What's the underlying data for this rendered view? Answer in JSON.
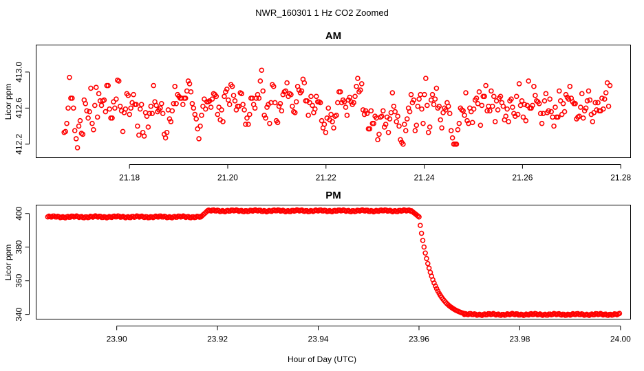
{
  "figure": {
    "suptitle": "NWR_160301  1 Hz CO2 Zoomed",
    "xlabel": "Hour of Day (UTC)"
  },
  "chart_data": [
    {
      "type": "scatter",
      "title": "AM",
      "ylabel": "Licor ppm",
      "xlim": [
        21.161,
        21.282
      ],
      "ylim": [
        412.05,
        413.3
      ],
      "xticks": [
        21.18,
        21.2,
        21.22,
        21.24,
        21.26,
        21.28
      ],
      "xtick_labels": [
        "21.18",
        "21.20",
        "21.22",
        "21.24",
        "21.26",
        "21.28"
      ],
      "yticks": [
        412.2,
        412.6,
        413.0
      ],
      "ytick_labels": [
        "412.2",
        "412.6",
        "413.0"
      ],
      "marker_color": "#ff0000",
      "x_start": 21.1667,
      "x_end": 21.2778,
      "n_points": 400,
      "y_values": [
        412.33,
        412.34,
        412.43,
        412.6,
        412.94,
        412.71,
        412.71,
        412.6,
        412.35,
        412.26,
        412.16,
        412.4,
        412.46,
        412.32,
        412.31,
        412.69,
        412.65,
        412.57,
        412.49,
        412.56,
        412.82,
        412.43,
        412.36,
        412.63,
        412.83,
        412.5,
        412.76,
        412.68,
        412.63,
        412.68,
        412.69,
        412.56,
        412.85,
        412.85,
        412.59,
        412.49,
        412.49,
        412.67,
        412.6,
        412.7,
        412.91,
        412.9,
        412.62,
        412.57,
        412.34,
        412.55,
        412.59,
        412.76,
        412.74,
        412.53,
        412.6,
        412.66,
        412.75,
        412.64,
        412.64,
        412.4,
        412.3,
        412.59,
        412.64,
        412.33,
        412.29,
        412.55,
        412.51,
        412.39,
        412.54,
        412.62,
        412.54,
        412.85,
        412.67,
        412.63,
        412.56,
        412.58,
        412.6,
        412.65,
        412.54,
        412.31,
        412.27,
        412.33,
        412.58,
        412.48,
        412.45,
        412.57,
        412.65,
        412.84,
        412.65,
        412.75,
        412.73,
        412.71,
        412.71,
        412.64,
        412.71,
        412.71,
        412.79,
        412.9,
        412.87,
        412.78,
        412.65,
        412.6,
        412.53,
        412.48,
        412.37,
        412.26,
        412.4,
        412.52,
        412.62,
        412.7,
        412.59,
        412.67,
        412.67,
        412.68,
        412.61,
        412.7,
        412.76,
        412.75,
        412.73,
        412.53,
        412.61,
        412.47,
        412.58,
        412.45,
        412.73,
        412.78,
        412.81,
        412.69,
        412.64,
        412.86,
        412.84,
        412.74,
        412.68,
        412.58,
        412.62,
        412.62,
        412.77,
        412.76,
        412.64,
        412.58,
        412.42,
        412.49,
        412.42,
        412.53,
        412.71,
        412.71,
        412.64,
        412.6,
        412.71,
        412.75,
        412.71,
        412.9,
        413.02,
        412.79,
        412.52,
        412.49,
        412.61,
        412.64,
        412.43,
        412.66,
        412.86,
        412.84,
        412.66,
        412.46,
        412.44,
        412.62,
        412.65,
        412.57,
        412.75,
        412.78,
        412.79,
        412.88,
        412.73,
        412.76,
        412.75,
        412.62,
        412.56,
        412.55,
        412.67,
        412.84,
        412.8,
        412.77,
        412.79,
        412.92,
        412.88,
        412.68,
        412.68,
        412.52,
        412.66,
        412.73,
        412.63,
        412.55,
        412.59,
        412.73,
        412.67,
        412.67,
        412.66,
        412.46,
        412.38,
        412.42,
        412.33,
        412.49,
        412.6,
        412.47,
        412.53,
        412.45,
        412.38,
        412.51,
        412.52,
        412.66,
        412.78,
        412.78,
        412.66,
        412.69,
        412.67,
        412.61,
        412.52,
        412.69,
        412.72,
        412.67,
        412.64,
        412.66,
        412.73,
        412.84,
        412.93,
        412.78,
        412.8,
        412.87,
        412.58,
        412.53,
        412.57,
        412.54,
        412.37,
        412.37,
        412.57,
        412.43,
        412.43,
        412.51,
        412.49,
        412.25,
        412.31,
        412.5,
        412.51,
        412.57,
        412.39,
        412.42,
        412.5,
        412.33,
        412.48,
        412.55,
        412.77,
        412.62,
        412.56,
        412.45,
        412.51,
        412.4,
        412.25,
        412.22,
        412.2,
        412.42,
        412.35,
        412.48,
        412.6,
        412.56,
        412.75,
        412.66,
        412.69,
        412.35,
        412.41,
        412.62,
        412.7,
        412.75,
        412.59,
        412.43,
        412.75,
        412.93,
        412.63,
        412.33,
        412.39,
        412.69,
        412.75,
        412.64,
        412.7,
        412.82,
        412.6,
        412.62,
        412.47,
        412.38,
        412.55,
        412.6,
        412.58,
        412.66,
        412.62,
        412.54,
        412.35,
        412.27,
        412.2,
        412.2,
        412.2,
        412.36,
        412.43,
        412.6,
        412.58,
        412.57,
        412.52,
        412.77,
        412.46,
        412.43,
        412.6,
        412.56,
        412.44,
        412.59,
        412.69,
        412.71,
        412.65,
        412.78,
        412.41,
        412.63,
        412.73,
        412.73,
        412.85,
        412.57,
        412.62,
        412.57,
        412.79,
        412.62,
        412.73,
        412.45,
        412.68,
        412.58,
        412.71,
        412.73,
        412.66,
        412.62,
        412.47,
        412.51,
        412.59,
        412.45,
        412.68,
        412.7,
        412.61,
        412.54,
        412.51,
        412.73,
        412.53,
        412.87,
        412.63,
        412.68,
        412.5,
        412.64,
        412.46,
        412.63,
        412.9,
        412.6,
        412.6,
        412.63,
        412.84,
        412.74,
        412.68,
        412.67,
        412.65,
        412.54,
        412.43,
        412.54,
        412.68,
        412.76,
        412.55,
        412.57,
        412.7,
        412.56,
        412.5,
        412.4,
        412.61,
        412.5,
        412.5,
        412.79,
        412.68,
        412.53,
        412.65,
        412.56,
        412.75,
        412.72,
        412.7,
        412.84,
        412.71,
        412.67,
        412.65,
        412.65,
        412.48,
        412.5,
        412.51,
        412.61,
        412.76,
        412.49,
        412.57,
        412.6,
        412.68,
        412.79,
        412.69,
        412.53,
        412.45,
        412.55,
        412.66,
        412.58,
        412.66,
        412.57,
        412.57,
        412.71,
        412.59,
        412.7,
        412.77,
        412.88,
        412.62,
        412.85
      ]
    },
    {
      "type": "scatter",
      "title": "PM",
      "ylabel": "Licor ppm",
      "xlim": [
        23.884,
        24.002
      ],
      "ylim": [
        337.2,
        405.0
      ],
      "xticks": [
        23.9,
        23.92,
        23.94,
        23.96,
        23.98,
        24.0
      ],
      "xtick_labels": [
        "23.90",
        "23.92",
        "23.94",
        "23.96",
        "23.98",
        "24.00"
      ],
      "yticks": [
        340,
        360,
        380,
        400
      ],
      "ytick_labels": [
        "340",
        "360",
        "380",
        "400"
      ],
      "marker_color": "#ff0000",
      "segments": [
        {
          "x_from": 23.8863,
          "x_to": 23.9167,
          "y_level": 398.0
        },
        {
          "x_from": 23.9167,
          "x_to": 23.918,
          "y_from": 398.0,
          "y_to": 401.5
        },
        {
          "x_from": 23.918,
          "x_to": 23.9585,
          "y_level": 401.6
        },
        {
          "x_from": 23.9585,
          "x_to": 23.96,
          "y_from": 401.6,
          "y_to": 398.0
        },
        {
          "x_from": 23.96,
          "x_to": 23.969,
          "y_from": 398.0,
          "y_to": 340.5,
          "shape": "decay"
        },
        {
          "x_from": 23.969,
          "x_to": 23.9998,
          "y_level": 340.0
        }
      ]
    }
  ]
}
